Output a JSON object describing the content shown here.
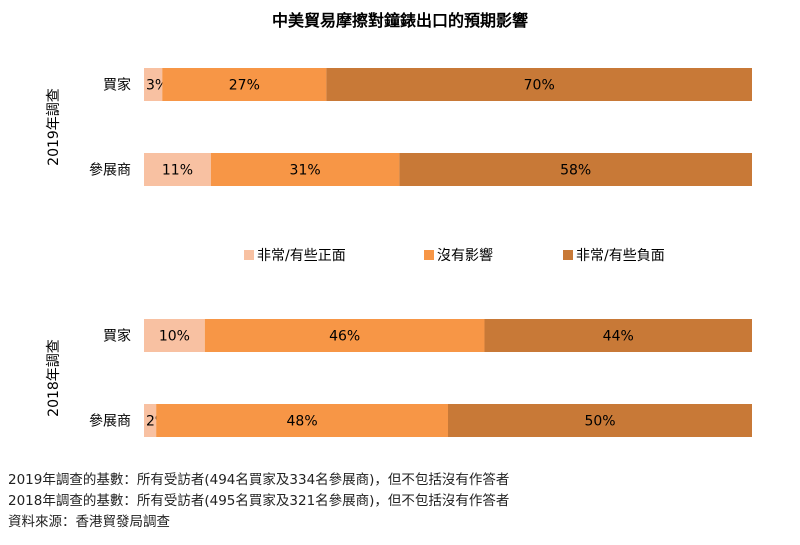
{
  "chart_data": {
    "type": "bar",
    "stacked": true,
    "orientation": "horizontal",
    "title": "中美貿易摩擦對鐘錶出口的預期影響",
    "series": [
      {
        "name": "非常/有些正面",
        "color": "#f8c1a2"
      },
      {
        "name": "沒有影響",
        "color": "#f79646"
      },
      {
        "name": "非常/有些負面",
        "color": "#c87937"
      }
    ],
    "groups": [
      {
        "label": "2019年調查",
        "categories": [
          {
            "label": "買家",
            "values": [
              3,
              27,
              70
            ],
            "value_labels": [
              "3%",
              "27%",
              "70%"
            ]
          },
          {
            "label": "參展商",
            "values": [
              11,
              31,
              58
            ],
            "value_labels": [
              "11%",
              "31%",
              "58%"
            ]
          }
        ]
      },
      {
        "label": "2018年調查",
        "categories": [
          {
            "label": "買家",
            "values": [
              10,
              46,
              44
            ],
            "value_labels": [
              "10%",
              "46%",
              "44%"
            ]
          },
          {
            "label": "參展商",
            "values": [
              2,
              48,
              50
            ],
            "value_labels": [
              "2%",
              "48%",
              "50%"
            ]
          }
        ]
      }
    ],
    "xlim": [
      0,
      100
    ],
    "legend_position": "middle"
  },
  "footnotes": [
    "2019年調查的基數：所有受訪者(494名買家及334名參展商)，但不包括沒有作答者",
    "2018年調查的基數：所有受訪者(495名買家及321名參展商)，但不包括沒有作答者",
    "資料來源：香港貿發局調查"
  ]
}
